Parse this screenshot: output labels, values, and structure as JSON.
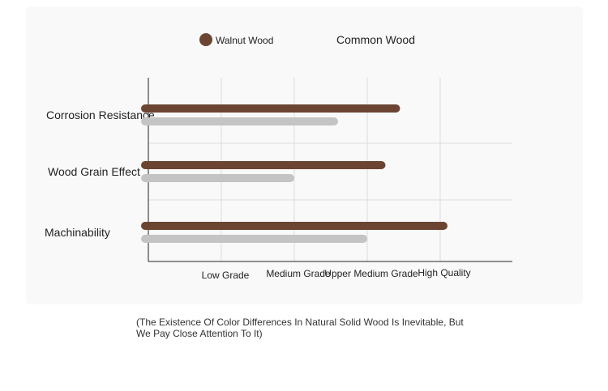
{
  "legend": {
    "walnut_label": "Walnut Wood",
    "common_label": "Common Wood"
  },
  "colors": {
    "walnut": "#6b4532",
    "common": "#c4c4c4",
    "grid": "#dddddd",
    "axis": "#222222"
  },
  "chart_data": {
    "type": "bar",
    "orientation": "horizontal",
    "categories": [
      "Corrosion Resistance",
      "Wood Grain Effect",
      "Machinability"
    ],
    "x_ticks": [
      "Low Grade",
      "Medium Grade",
      "Upper Medium Grade",
      "High Quality"
    ],
    "xlim": [
      0,
      5
    ],
    "grid": true,
    "legend_position": "top",
    "series": [
      {
        "name": "Walnut Wood",
        "values": [
          3.45,
          3.25,
          4.1
        ]
      },
      {
        "name": "Common Wood",
        "values": [
          2.6,
          2.0,
          3.0
        ]
      }
    ]
  },
  "note": "(The Existence Of Color Differences In Natural Solid Wood Is Inevitable, But We Pay Close Attention To It)"
}
